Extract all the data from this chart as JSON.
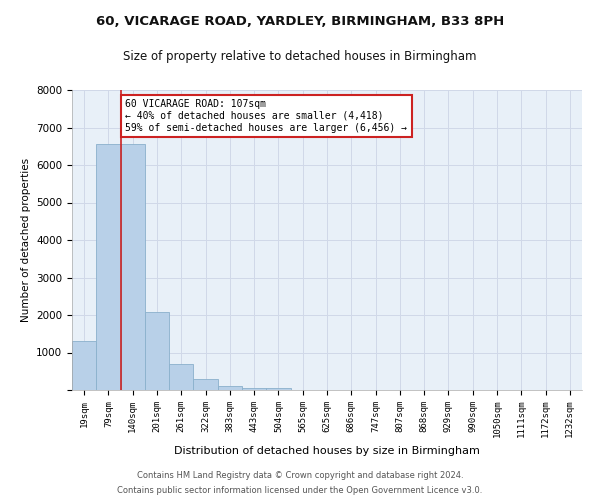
{
  "title_line1": "60, VICARAGE ROAD, YARDLEY, BIRMINGHAM, B33 8PH",
  "title_line2": "Size of property relative to detached houses in Birmingham",
  "xlabel": "Distribution of detached houses by size in Birmingham",
  "ylabel": "Number of detached properties",
  "categories": [
    "19sqm",
    "79sqm",
    "140sqm",
    "201sqm",
    "261sqm",
    "322sqm",
    "383sqm",
    "443sqm",
    "504sqm",
    "565sqm",
    "625sqm",
    "686sqm",
    "747sqm",
    "807sqm",
    "868sqm",
    "929sqm",
    "990sqm",
    "1050sqm",
    "1111sqm",
    "1172sqm",
    "1232sqm"
  ],
  "values": [
    1300,
    6550,
    6550,
    2090,
    690,
    295,
    120,
    65,
    65,
    0,
    0,
    0,
    0,
    0,
    0,
    0,
    0,
    0,
    0,
    0,
    0
  ],
  "bar_color": "#b8d0e8",
  "bar_edgecolor": "#8ab0cc",
  "vline_x": 1.5,
  "vline_color": "#cc2222",
  "annotation_text": "60 VICARAGE ROAD: 107sqm\n← 40% of detached houses are smaller (4,418)\n59% of semi-detached houses are larger (6,456) →",
  "annotation_box_color": "#ffffff",
  "annotation_box_edgecolor": "#cc2222",
  "ylim": [
    0,
    8000
  ],
  "yticks": [
    0,
    1000,
    2000,
    3000,
    4000,
    5000,
    6000,
    7000,
    8000
  ],
  "grid_color": "#d0d8e8",
  "bg_color": "#e8f0f8",
  "footer_line1": "Contains HM Land Registry data © Crown copyright and database right 2024.",
  "footer_line2": "Contains public sector information licensed under the Open Government Licence v3.0."
}
